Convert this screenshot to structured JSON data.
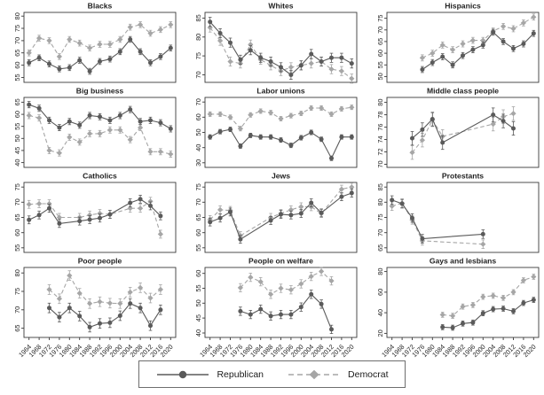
{
  "legend": {
    "republican": "Republican",
    "democrat": "Democrat"
  },
  "colors": {
    "republican": "#5a5a5a",
    "democrat": "#a6a6a6",
    "axis": "#3a3a3a",
    "tick_text": "#1f1f1f",
    "background": "#ffffff",
    "legend_border": "#6e6e6e"
  },
  "x_axis": {
    "tick_years": [
      1964,
      1968,
      1972,
      1976,
      1980,
      1984,
      1988,
      1992,
      1996,
      2000,
      2004,
      2008,
      2012,
      2016,
      2020
    ],
    "xlim": [
      1962,
      2022
    ]
  },
  "chart_data": {
    "type": "line",
    "legend_position": "bottom-center",
    "grid": false,
    "series_styles": [
      {
        "name": "Republican",
        "line": "solid",
        "marker": "circle",
        "color": "#5a5a5a"
      },
      {
        "name": "Democrat",
        "line": "dashed",
        "marker": "diamond",
        "color": "#a6a6a6"
      }
    ],
    "panels": [
      {
        "title": "Blacks",
        "ylim": [
          53,
          81.5
        ],
        "yticks": [
          55,
          60,
          65,
          70,
          75,
          80
        ],
        "ci": 1.2,
        "x": [
          1964,
          1968,
          1972,
          1976,
          1980,
          1984,
          1988,
          1992,
          1996,
          2000,
          2004,
          2008,
          2012,
          2016,
          2020
        ],
        "series": [
          {
            "name": "Republican",
            "values": [
              61,
              63,
              60.5,
              58.5,
              59,
              62,
              57.5,
              61.5,
              62.5,
              65.5,
              70.5,
              65.5,
              61,
              63.5,
              67
            ]
          },
          {
            "name": "Democrat",
            "values": [
              65,
              71,
              70,
              63.5,
              70.5,
              69,
              67,
              68.5,
              68.5,
              70.5,
              75.5,
              76.5,
              73,
              74.5,
              76.5
            ]
          }
        ]
      },
      {
        "title": "Whites",
        "ylim": [
          68,
          86.5
        ],
        "yticks": [
          70,
          75,
          80,
          85
        ],
        "ci": 1.2,
        "x": [
          1964,
          1968,
          1972,
          1976,
          1980,
          1984,
          1988,
          1992,
          1996,
          2000,
          2004,
          2008,
          2012,
          2016,
          2020
        ],
        "series": [
          {
            "name": "Republican",
            "values": [
              84,
              81,
              78.5,
              74,
              76.5,
              74.5,
              73.5,
              72,
              70,
              72.5,
              75.5,
              73.5,
              74.5,
              74.5,
              73
            ]
          },
          {
            "name": "Democrat",
            "values": [
              82.5,
              79,
              73.5,
              73,
              78,
              74,
              72.5,
              71,
              72,
              72.5,
              73,
              73.5,
              71.5,
              71,
              69
            ]
          }
        ]
      },
      {
        "title": "Hispanics",
        "ylim": [
          47.5,
          77.5
        ],
        "yticks": [
          50,
          55,
          60,
          65,
          70,
          75
        ],
        "ci": 1.3,
        "x": [
          1976,
          1980,
          1984,
          1988,
          1992,
          1996,
          2000,
          2004,
          2008,
          2012,
          2016,
          2020
        ],
        "series": [
          {
            "name": "Republican",
            "values": [
              53,
              56,
              58.5,
              55,
              59,
              61.5,
              63.5,
              69,
              65,
              62,
              64,
              68.5
            ]
          },
          {
            "name": "Democrat",
            "values": [
              58,
              60,
              63.5,
              61.5,
              64,
              65.5,
              65.5,
              69.5,
              71.5,
              70.5,
              73,
              75.5
            ]
          }
        ]
      },
      {
        "title": "Big business",
        "ylim": [
          38,
          67
        ],
        "yticks": [
          40,
          45,
          50,
          55,
          60,
          65
        ],
        "ci": 1.3,
        "x": [
          1964,
          1968,
          1972,
          1976,
          1980,
          1984,
          1988,
          1992,
          1996,
          2000,
          2004,
          2008,
          2012,
          2016,
          2020
        ],
        "series": [
          {
            "name": "Republican",
            "values": [
              64,
              62.5,
              57.5,
              54.5,
              57,
              55.5,
              59.5,
              59,
              57.5,
              59.5,
              62,
              57,
              57.5,
              56.5,
              54
            ]
          },
          {
            "name": "Democrat",
            "values": [
              59.5,
              58.5,
              45,
              44,
              50.5,
              48.5,
              52,
              52,
              53.5,
              53.5,
              49.5,
              54.5,
              44.5,
              44.5,
              43.5
            ]
          }
        ]
      },
      {
        "title": "Labor unions",
        "ylim": [
          27,
          73
        ],
        "yticks": [
          30,
          40,
          50,
          60,
          70
        ],
        "ci": 1.5,
        "x": [
          1964,
          1968,
          1972,
          1976,
          1980,
          1984,
          1988,
          1992,
          1996,
          2000,
          2004,
          2008,
          2012,
          2016,
          2020
        ],
        "series": [
          {
            "name": "Republican",
            "values": [
              47,
              50.5,
              52,
              41,
              48,
              47,
              47,
              45,
              41.5,
              46.5,
              50,
              45.5,
              33,
              47,
              47
            ]
          },
          {
            "name": "Democrat",
            "values": [
              62,
              62,
              60,
              52.5,
              61.5,
              64,
              63,
              59,
              61,
              62.5,
              66,
              66,
              62,
              65.5,
              66.5
            ]
          }
        ]
      },
      {
        "title": "Middle class people",
        "ylim": [
          69.5,
          80.8
        ],
        "yticks": [
          70,
          72,
          74,
          76,
          78,
          80
        ],
        "ci": 1.1,
        "x": [
          1972,
          1976,
          1980,
          1984,
          2004,
          2008,
          2012
        ],
        "series": [
          {
            "name": "Republican",
            "values": [
              74.2,
              75.6,
              77.3,
              73.5,
              78,
              77,
              75.8
            ]
          },
          {
            "name": "Democrat",
            "values": [
              71.9,
              73.9,
              77.2,
              74.5,
              76.5,
              77.7,
              78.2
            ]
          }
        ]
      },
      {
        "title": "Catholics",
        "ylim": [
          53.5,
          76.5
        ],
        "yticks": [
          55,
          60,
          65,
          70,
          75
        ],
        "ci": 1.3,
        "x": [
          1964,
          1968,
          1972,
          1976,
          1984,
          1988,
          1992,
          1996,
          2004,
          2008,
          2012,
          2016
        ],
        "series": [
          {
            "name": "Republican",
            "values": [
              64.2,
              65.8,
              68,
              63,
              63.8,
              64.3,
              64.8,
              66,
              69.8,
              71,
              68.8,
              65.5
            ]
          },
          {
            "name": "Democrat",
            "values": [
              69.3,
              69.5,
              69.5,
              65,
              65,
              65.8,
              66.3,
              66,
              68,
              68,
              70.3,
              59.5
            ]
          }
        ]
      },
      {
        "title": "Jews",
        "ylim": [
          53.5,
          76.5
        ],
        "yticks": [
          55,
          60,
          65,
          70,
          75
        ],
        "ci": 1.3,
        "x": [
          1964,
          1968,
          1972,
          1976,
          1988,
          1992,
          1996,
          2000,
          2004,
          2008,
          2016,
          2020
        ],
        "series": [
          {
            "name": "Republican",
            "values": [
              63.5,
              64.8,
              66.8,
              57.8,
              64,
              66,
              65.8,
              66.3,
              69.8,
              66.5,
              71.8,
              73
            ]
          },
          {
            "name": "Democrat",
            "values": [
              64.3,
              67.5,
              67.3,
              59,
              65,
              66.3,
              67.5,
              68.5,
              68.5,
              66.3,
              74.3,
              75
            ]
          }
        ]
      },
      {
        "title": "Protestants",
        "ylim": [
          63.5,
          86.5
        ],
        "yticks": [
          65,
          70,
          75,
          80,
          85
        ],
        "ci": 1.4,
        "x": [
          1964,
          1968,
          1972,
          1976,
          2000
        ],
        "series": [
          {
            "name": "Republican",
            "values": [
              80.7,
              79.5,
              74.8,
              68,
              69.5
            ]
          },
          {
            "name": "Democrat",
            "values": [
              78.7,
              79.7,
              74.2,
              67.3,
              66.2
            ]
          }
        ]
      },
      {
        "title": "Poor people",
        "ylim": [
          62.5,
          81.5
        ],
        "yticks": [
          65,
          70,
          75,
          80
        ],
        "ci": 1.3,
        "x": [
          1972,
          1976,
          1980,
          1984,
          1988,
          1992,
          1996,
          2000,
          2004,
          2008,
          2012,
          2016
        ],
        "series": [
          {
            "name": "Republican",
            "values": [
              70.5,
              68,
              70.5,
              68.3,
              65.3,
              66.3,
              66.5,
              68.4,
              71.7,
              70.5,
              65.7,
              70
            ]
          },
          {
            "name": "Democrat",
            "values": [
              75.5,
              73,
              79.3,
              74.5,
              71.7,
              72.2,
              71.8,
              71.7,
              74.8,
              76,
              73.2,
              75.5
            ]
          }
        ]
      },
      {
        "title": "People on welfare",
        "ylim": [
          38.5,
          62
        ],
        "yticks": [
          40,
          45,
          50,
          55,
          60
        ],
        "ci": 1.4,
        "x": [
          1976,
          1980,
          1984,
          1988,
          1992,
          1996,
          2000,
          2004,
          2008,
          2012
        ],
        "series": [
          {
            "name": "Republican",
            "values": [
              47.3,
              46.2,
              48,
              45.7,
              46.2,
              46.2,
              48.7,
              53,
              49.7,
              41.2
            ]
          },
          {
            "name": "Democrat",
            "values": [
              55.2,
              58.7,
              57.2,
              53,
              55,
              54.5,
              56.5,
              59,
              60.7,
              57.5
            ]
          }
        ]
      },
      {
        "title": "Gays and lesbians",
        "ylim": [
          16,
          84
        ],
        "yticks": [
          20,
          40,
          60,
          80
        ],
        "ci": 2.5,
        "x": [
          1984,
          1988,
          1992,
          1996,
          2000,
          2004,
          2008,
          2012,
          2016,
          2020
        ],
        "series": [
          {
            "name": "Republican",
            "values": [
              26,
              25.5,
              29.5,
              30.5,
              39.5,
              43.5,
              44,
              41.5,
              49.5,
              52.5
            ]
          },
          {
            "name": "Democrat",
            "values": [
              38,
              37,
              46,
              47.5,
              55.5,
              56.5,
              54.5,
              60,
              71.5,
              75
            ]
          }
        ]
      }
    ]
  }
}
